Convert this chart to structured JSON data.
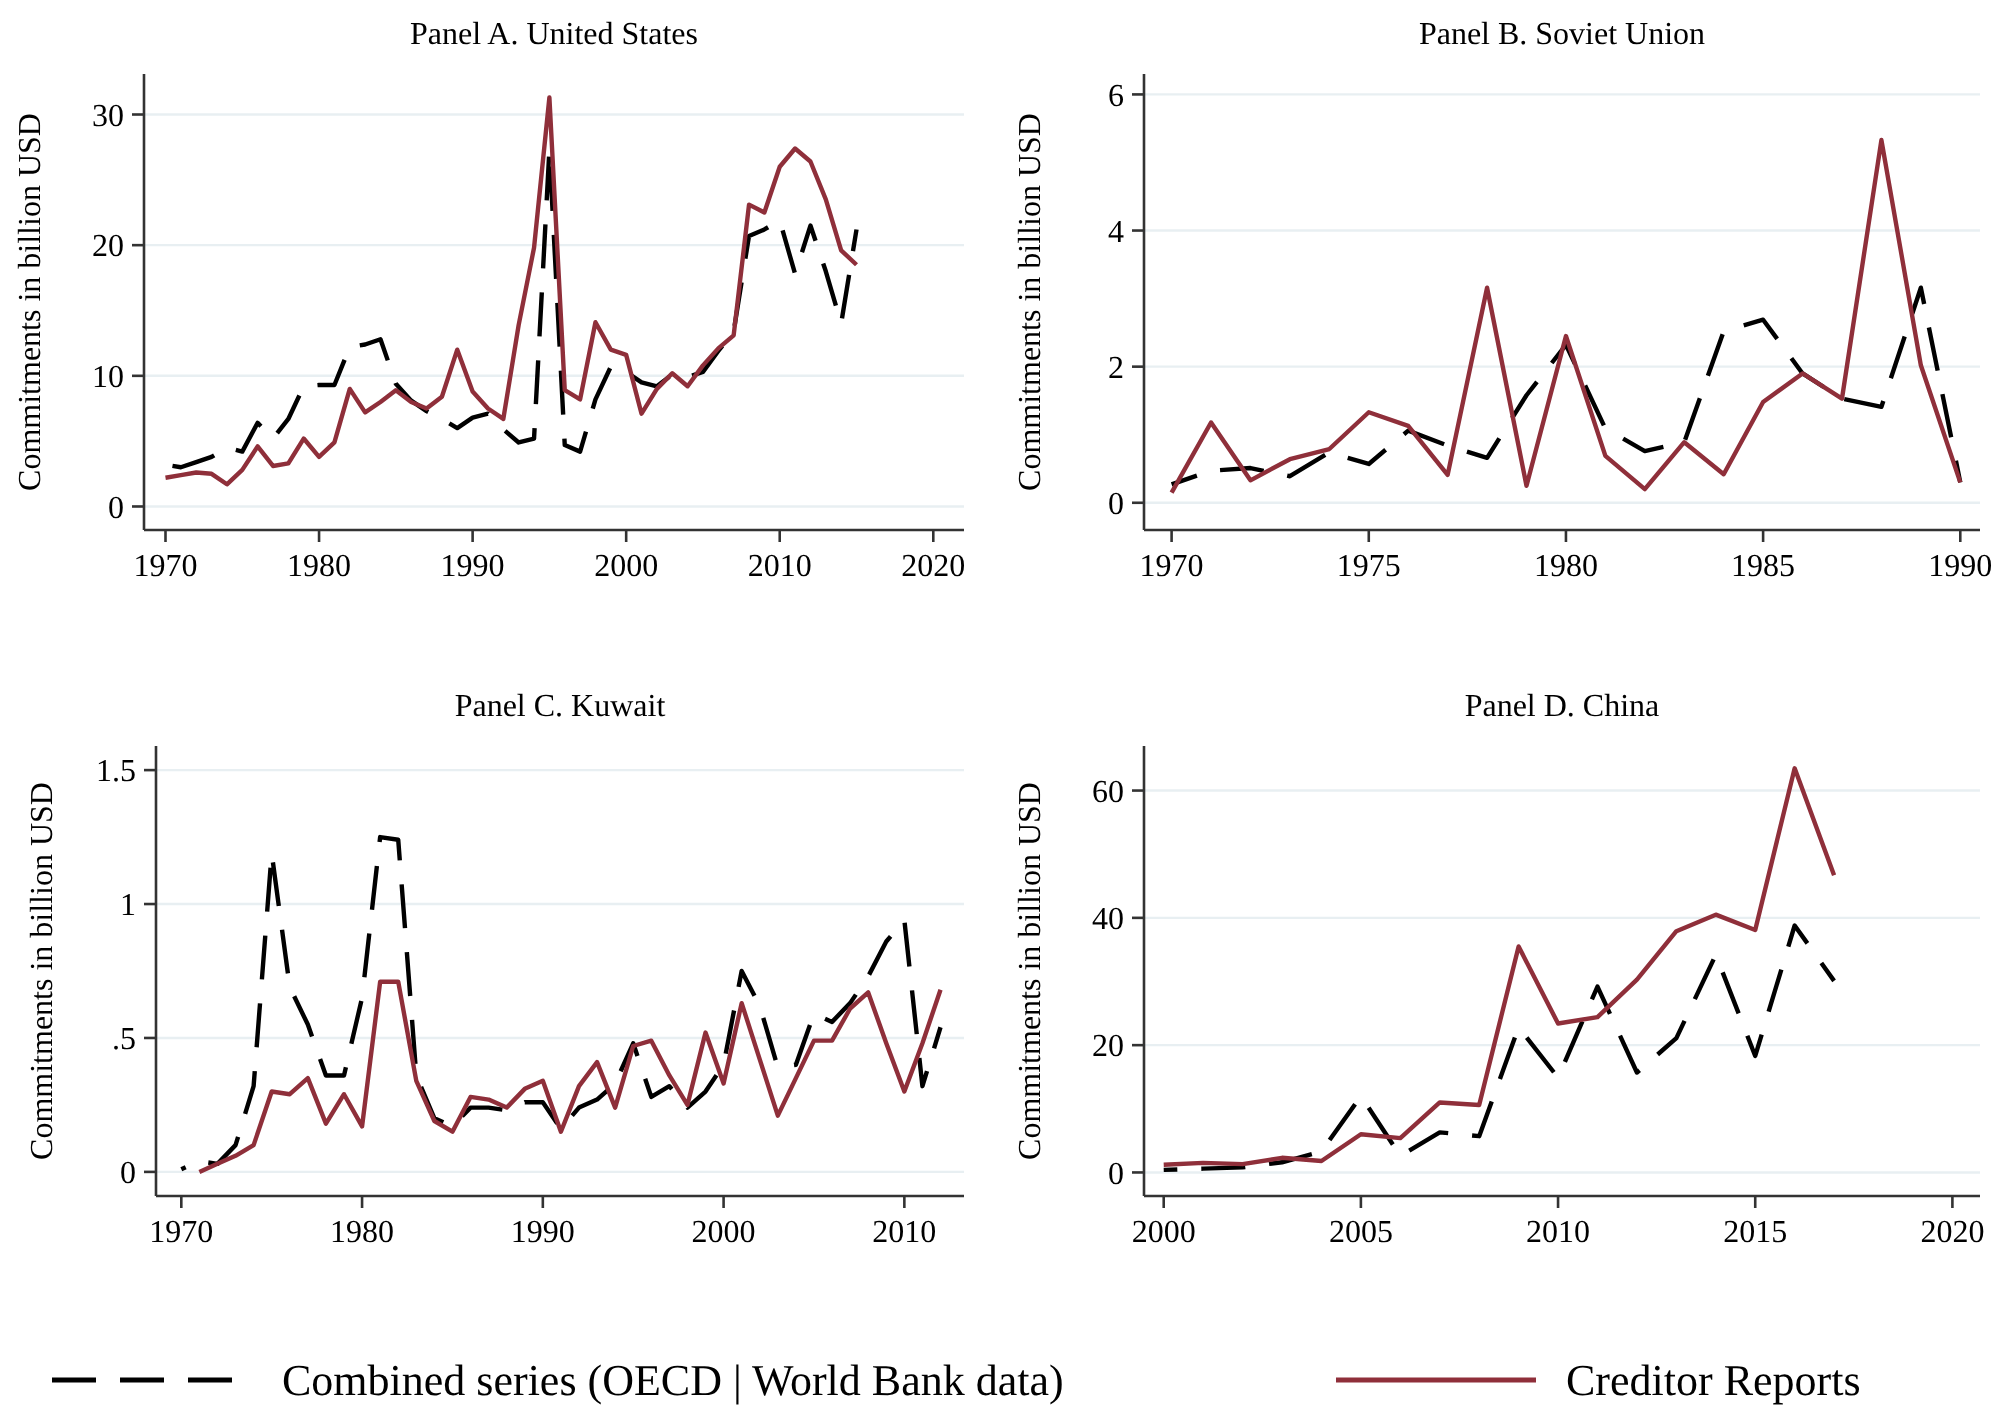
{
  "chart_data": [
    {
      "type": "line",
      "title": "Panel A. United States",
      "ylabel": "Commitments in billion USD",
      "legend": "bottom",
      "grid": "y",
      "x": [
        1970,
        1971,
        1972,
        1973,
        1974,
        1975,
        1976,
        1977,
        1978,
        1979,
        1980,
        1981,
        1982,
        1983,
        1984,
        1985,
        1986,
        1987,
        1988,
        1989,
        1990,
        1991,
        1992,
        1993,
        1994,
        1995,
        1996,
        1997,
        1998,
        1999,
        2000,
        2001,
        2002,
        2003,
        2004,
        2005,
        2006,
        2007,
        2008,
        2009,
        2010,
        2011,
        2012,
        2013,
        2014,
        2015
      ],
      "xlim": [
        1968.6,
        2022
      ],
      "xticks": [
        1970,
        1980,
        1990,
        2000,
        2010,
        2020
      ],
      "ylim": [
        -1.8,
        33.1
      ],
      "yticks": [
        0,
        10,
        20,
        30
      ],
      "series": [
        {
          "name": "Combined series (OECD | World Bank data)",
          "color": "#000000",
          "line_style": "dashed",
          "values": [
            3.2,
            3.0,
            3.4,
            3.8,
            4.5,
            4.2,
            6.4,
            5.2,
            6.7,
            9.2,
            9.3,
            9.3,
            12.2,
            12.4,
            12.8,
            9.4,
            8.1,
            7.3,
            6.7,
            6.0,
            6.8,
            7.1,
            5.9,
            4.9,
            5.2,
            27.3,
            4.7,
            4.2,
            8.2,
            10.7,
            10.3,
            9.5,
            9.2,
            10.1,
            9.9,
            10.3,
            11.9,
            13.4,
            20.7,
            21.2,
            21.9,
            17.8,
            21.5,
            18.0,
            14.0,
            21.2
          ]
        },
        {
          "name": "Creditor Reports",
          "color": "#8f2f3a",
          "line_style": "solid",
          "values": [
            2.2,
            2.4,
            2.6,
            2.5,
            1.7,
            2.8,
            4.6,
            3.1,
            3.3,
            5.2,
            3.8,
            4.9,
            9.0,
            7.2,
            8.0,
            8.9,
            8.0,
            7.5,
            8.4,
            12.0,
            8.8,
            7.5,
            6.7,
            13.9,
            19.8,
            31.3,
            8.9,
            8.2,
            14.1,
            12.0,
            11.6,
            7.1,
            9.0,
            10.2,
            9.2,
            10.8,
            12.1,
            13.1,
            23.1,
            22.5,
            26.0,
            27.4,
            26.4,
            23.5,
            19.6,
            18.5
          ]
        }
      ]
    },
    {
      "type": "line",
      "title": "Panel B. Soviet Union",
      "ylabel": "Commitments in billion USD",
      "grid": "y",
      "x": [
        1970,
        1971,
        1972,
        1973,
        1974,
        1975,
        1976,
        1977,
        1978,
        1979,
        1980,
        1981,
        1982,
        1983,
        1984,
        1985,
        1986,
        1987,
        1988,
        1989,
        1990
      ],
      "xlim": [
        1969.3,
        1990.5
      ],
      "xticks": [
        1970,
        1975,
        1980,
        1985,
        1990
      ],
      "ylim": [
        -0.4,
        6.3
      ],
      "yticks": [
        0,
        2,
        4,
        6
      ],
      "series": [
        {
          "color": "#000000",
          "line_style": "dashed",
          "values": [
            0.27,
            0.47,
            0.51,
            0.39,
            0.74,
            0.57,
            1.06,
            0.84,
            0.66,
            1.58,
            2.32,
            1.09,
            0.76,
            0.89,
            2.52,
            2.69,
            1.9,
            1.53,
            1.41,
            3.16,
            0.3
          ]
        },
        {
          "color": "#8f2f3a",
          "line_style": "solid",
          "values": [
            0.15,
            1.18,
            0.33,
            0.64,
            0.79,
            1.33,
            1.13,
            0.41,
            3.16,
            0.25,
            2.45,
            0.69,
            0.2,
            0.89,
            0.42,
            1.48,
            1.9,
            1.53,
            5.33,
            2.02,
            0.3
          ]
        }
      ]
    },
    {
      "type": "line",
      "title": "Panel C. Kuwait",
      "ylabel": "Commitments in billion USD",
      "grid": "y",
      "x": [
        1970,
        1971,
        1972,
        1973,
        1974,
        1975,
        1976,
        1977,
        1978,
        1979,
        1980,
        1981,
        1982,
        1983,
        1984,
        1985,
        1986,
        1987,
        1988,
        1989,
        1990,
        1991,
        1992,
        1993,
        1994,
        1995,
        1996,
        1997,
        1998,
        1999,
        2000,
        2001,
        2002,
        2003,
        2004,
        2005,
        2006,
        2007,
        2008,
        2009,
        2010,
        2011,
        2012
      ],
      "xlim": [
        1968.6,
        2013.3
      ],
      "xticks": [
        1970,
        1980,
        1990,
        2000,
        2010
      ],
      "ylim": [
        -0.09,
        1.59
      ],
      "yticks": [
        0,
        {
          "value": 0.5,
          "label": ".5"
        },
        1,
        1.5
      ],
      "series": [
        {
          "color": "#000000",
          "line_style": "dashed",
          "values": [
            0.01,
            0.04,
            0.03,
            0.1,
            0.32,
            1.19,
            0.69,
            0.55,
            0.36,
            0.36,
            0.65,
            1.25,
            1.24,
            0.36,
            0.2,
            0.17,
            0.24,
            0.24,
            0.23,
            0.26,
            0.26,
            0.16,
            0.24,
            0.27,
            0.33,
            0.48,
            0.28,
            0.32,
            0.24,
            0.3,
            0.4,
            0.75,
            0.62,
            0.39,
            0.4,
            0.59,
            0.56,
            0.63,
            0.73,
            0.86,
            0.94,
            0.32,
            0.54
          ]
        },
        {
          "color": "#8f2f3a",
          "line_style": "solid",
          "values": [
            null,
            0,
            0.03,
            0.06,
            0.1,
            0.3,
            0.29,
            0.35,
            0.18,
            0.29,
            0.17,
            0.71,
            0.71,
            0.34,
            0.19,
            0.15,
            0.28,
            0.27,
            0.24,
            0.31,
            0.34,
            0.15,
            0.32,
            0.41,
            0.24,
            0.47,
            0.49,
            0.36,
            0.25,
            0.52,
            0.33,
            0.63,
            0.42,
            0.21,
            0.35,
            0.49,
            0.49,
            0.61,
            0.67,
            0.48,
            0.3,
            0.48,
            0.68
          ]
        }
      ]
    },
    {
      "type": "line",
      "title": "Panel D. China",
      "ylabel": "Commitments in billion USD",
      "grid": "y",
      "x": [
        2000,
        2001,
        2002,
        2003,
        2004,
        2005,
        2006,
        2007,
        2008,
        2009,
        2010,
        2011,
        2012,
        2013,
        2014,
        2015,
        2016,
        2017
      ],
      "xlim": [
        1999.5,
        2020.7
      ],
      "xticks": [
        2000,
        2005,
        2010,
        2015,
        2020
      ],
      "ylim": [
        -3.7,
        67
      ],
      "yticks": [
        0,
        20,
        40,
        60
      ],
      "series": [
        {
          "color": "#000000",
          "line_style": "dashed",
          "values": [
            0.4,
            0.6,
            0.8,
            1.6,
            3.3,
            12.0,
            2.6,
            6.3,
            5.7,
            22.8,
            14.9,
            29.2,
            15.7,
            21.1,
            34.2,
            18.3,
            38.8,
            30.1
          ]
        },
        {
          "color": "#8f2f3a",
          "line_style": "solid",
          "values": [
            1.2,
            1.5,
            1.3,
            2.3,
            1.8,
            6.0,
            5.4,
            11.0,
            10.6,
            35.5,
            23.4,
            24.4,
            30.3,
            37.9,
            40.5,
            38.1,
            63.5,
            46.7
          ]
        }
      ]
    }
  ]
}
